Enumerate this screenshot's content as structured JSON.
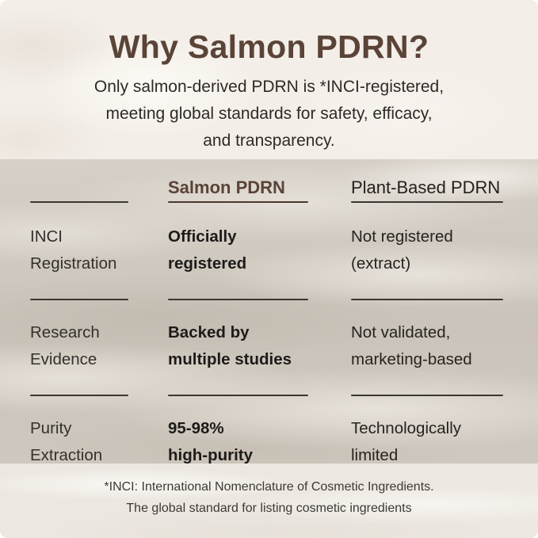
{
  "page": {
    "title": "Why Salmon PDRN?",
    "subtitle_lines": [
      "Only salmon-derived PDRN is *INCI-registered,",
      "meeting global standards for safety, efficacy,",
      "and transparency."
    ]
  },
  "comparison_table": {
    "header": {
      "salmon": "Salmon PDRN",
      "plant": "Plant-Based PDRN"
    },
    "rows": [
      {
        "label": [
          "INCI",
          "Registration"
        ],
        "salmon": [
          "Officially",
          "registered"
        ],
        "plant": [
          "Not registered",
          "(extract)"
        ]
      },
      {
        "label": [
          "Research",
          "Evidence"
        ],
        "salmon": [
          "Backed by",
          "multiple studies"
        ],
        "plant": [
          "Not validated,",
          "marketing-based"
        ]
      },
      {
        "label": [
          "Purity",
          "Extraction"
        ],
        "salmon": [
          "95-98%",
          "high-purity"
        ],
        "plant": [
          "Technologically",
          "limited"
        ]
      }
    ]
  },
  "footnote": {
    "line1": "*INCI: International Nomenclature of Cosmetic Ingredients.",
    "line2": "The global standard for listing cosmetic ingredients"
  },
  "colors": {
    "brand_brown": "#5a4337",
    "text_dark": "#26231f",
    "divider_dark": "#3a3631",
    "divider_brown": "#4c382c",
    "background_cream": "#f3eee8",
    "background_taupe": "#cfc8be"
  }
}
